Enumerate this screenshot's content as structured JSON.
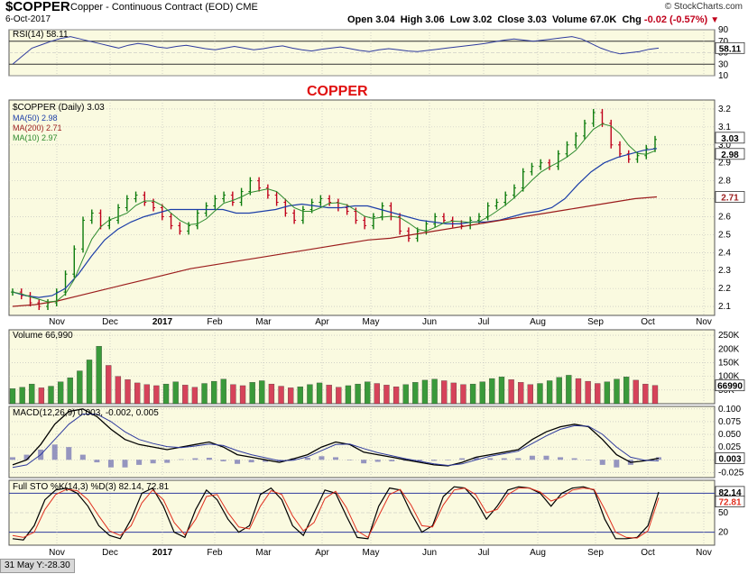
{
  "header": {
    "symbol": "$COPPER",
    "description": "Copper - Continuous Contract (EOD)",
    "exchange": "CME",
    "date": "6-Oct-2017",
    "brand": "© StockCharts.com",
    "open_label": "Open",
    "open": "3.04",
    "high_label": "High",
    "high": "3.06",
    "low_label": "Low",
    "low": "3.02",
    "close_label": "Close",
    "close": "3.03",
    "volume_label": "Volume",
    "volume": "67.0K",
    "chg_label": "Chg",
    "chg": "-0.02 (-0.57%)"
  },
  "footer": {
    "crosshair_readout": "31 May Y:-28.30"
  },
  "colors": {
    "panel_bg": "#fafae0",
    "grid": "#b9b9b9",
    "up": "#0a7a0a",
    "down": "#c0001b",
    "ma50": "#1c3ea8",
    "ma200": "#9b1c1c",
    "ma10": "#2e8b2e",
    "rsi_line": "#2e3a9e",
    "volume_up": "#3a9a3a",
    "volume_down": "#d6435a",
    "macd_line": "#000000",
    "signal_line": "#2e3a9e",
    "histogram": "#6a6ab0",
    "sto_k": "#000000",
    "sto_d": "#e03020"
  },
  "chart_data": [
    {
      "type": "line",
      "title": "RSI(14) 58.11",
      "series": [
        {
          "name": "RSI(14)",
          "values": [
            30,
            44,
            58,
            64,
            70,
            75,
            78,
            74,
            70,
            66,
            62,
            58,
            63,
            66,
            64,
            60,
            58,
            61,
            63,
            60,
            57,
            55,
            58,
            61,
            58,
            55,
            57,
            60,
            62,
            58,
            55,
            53,
            56,
            58,
            60,
            57,
            54,
            52,
            55,
            57,
            55,
            53,
            52,
            54,
            56,
            58,
            60,
            62,
            64,
            66,
            69,
            72,
            74,
            72,
            70,
            72,
            74,
            76,
            78,
            74,
            66,
            58,
            52,
            48,
            50,
            52,
            56,
            58
          ]
        }
      ],
      "ylim": [
        10,
        90
      ],
      "y_ticks": [
        "90",
        "70",
        "50",
        "30",
        "10"
      ],
      "value_badge": "58.11"
    },
    {
      "type": "line",
      "title": "$COPPER (Daily) 3.03",
      "annotation": "COPPER",
      "legend": [
        "MA(50) 2.98",
        "MA(200) 2.71",
        "MA(10) 2.97"
      ],
      "x_tick_labels": [
        "Nov",
        "Dec",
        "2017",
        "Feb",
        "Mar",
        "Apr",
        "May",
        "Jun",
        "Jul",
        "Aug",
        "Sep",
        "Oct",
        "Nov"
      ],
      "y_ticks": [
        "3.2",
        "3.1",
        "3.0",
        "2.9",
        "2.8",
        "2.7",
        "2.6",
        "2.5",
        "2.4",
        "2.3",
        "2.2",
        "2.1"
      ],
      "ylim": [
        2.05,
        3.25
      ],
      "series": [
        {
          "name": "$COPPER",
          "values": [
            2.18,
            2.16,
            2.12,
            2.1,
            2.12,
            2.18,
            2.28,
            2.42,
            2.58,
            2.62,
            2.55,
            2.58,
            2.65,
            2.7,
            2.72,
            2.68,
            2.65,
            2.6,
            2.55,
            2.52,
            2.55,
            2.62,
            2.66,
            2.7,
            2.72,
            2.68,
            2.74,
            2.8,
            2.76,
            2.72,
            2.68,
            2.62,
            2.58,
            2.64,
            2.68,
            2.7,
            2.68,
            2.65,
            2.63,
            2.58,
            2.55,
            2.6,
            2.66,
            2.6,
            2.52,
            2.48,
            2.52,
            2.56,
            2.6,
            2.58,
            2.56,
            2.55,
            2.58,
            2.6,
            2.66,
            2.68,
            2.72,
            2.76,
            2.85,
            2.88,
            2.9,
            2.88,
            2.95,
            3.0,
            3.05,
            3.12,
            3.18,
            3.12,
            3.0,
            2.95,
            2.92,
            2.94,
            2.98,
            3.03
          ]
        },
        {
          "name": "MA(50)",
          "values": [
            2.18,
            2.16,
            2.15,
            2.16,
            2.2,
            2.28,
            2.38,
            2.47,
            2.53,
            2.57,
            2.6,
            2.62,
            2.64,
            2.64,
            2.64,
            2.64,
            2.64,
            2.62,
            2.62,
            2.63,
            2.64,
            2.66,
            2.67,
            2.66,
            2.65,
            2.65,
            2.66,
            2.66,
            2.64,
            2.62,
            2.6,
            2.58,
            2.57,
            2.56,
            2.56,
            2.57,
            2.57,
            2.58,
            2.6,
            2.62,
            2.63,
            2.65,
            2.7,
            2.78,
            2.85,
            2.9,
            2.93,
            2.95,
            2.97,
            2.98
          ]
        },
        {
          "name": "MA(200)",
          "values": [
            2.1,
            2.11,
            2.13,
            2.16,
            2.19,
            2.22,
            2.25,
            2.28,
            2.31,
            2.33,
            2.35,
            2.37,
            2.39,
            2.41,
            2.43,
            2.45,
            2.47,
            2.48,
            2.5,
            2.52,
            2.54,
            2.56,
            2.58,
            2.6,
            2.62,
            2.64,
            2.66,
            2.68,
            2.7,
            2.71
          ]
        }
      ],
      "value_badges": [
        "3.03",
        "2.98",
        "2.71"
      ]
    },
    {
      "type": "bar",
      "title": "Volume 66,990",
      "y_ticks": [
        "250K",
        "200K",
        "150K",
        "100K",
        "50K"
      ],
      "ylim": [
        0,
        270000
      ],
      "value_badge": "66990",
      "values": [
        55000,
        60000,
        72000,
        58000,
        64000,
        80000,
        95000,
        120000,
        160000,
        210000,
        140000,
        100000,
        88000,
        76000,
        70000,
        66000,
        72000,
        80000,
        68000,
        60000,
        74000,
        82000,
        90000,
        70000,
        66000,
        78000,
        84000,
        72000,
        64000,
        58000,
        62000,
        70000,
        76000,
        68000,
        60000,
        66000,
        72000,
        80000,
        74000,
        68000,
        62000,
        70000,
        78000,
        86000,
        90000,
        84000,
        76000,
        70000,
        72000,
        80000,
        92000,
        98000,
        88000,
        78000,
        70000,
        74000,
        84000,
        96000,
        104000,
        92000,
        82000,
        74000,
        80000,
        90000,
        98000,
        86000,
        72000,
        67000
      ]
    },
    {
      "type": "line",
      "title": "MACD(12,26,9) 0.003, -0.002, 0.005",
      "y_ticks": [
        "0.100",
        "0.075",
        "0.050",
        "0.025",
        "0.000",
        "-0.025"
      ],
      "ylim": [
        -0.035,
        0.105
      ],
      "value_badge": "0.003",
      "series": [
        {
          "name": "MACD",
          "values": [
            -0.01,
            0.0,
            0.03,
            0.07,
            0.095,
            0.1,
            0.085,
            0.06,
            0.04,
            0.03,
            0.025,
            0.02,
            0.025,
            0.03,
            0.035,
            0.025,
            0.01,
            0.005,
            0.0,
            -0.005,
            0.002,
            0.01,
            0.025,
            0.035,
            0.03,
            0.015,
            0.01,
            0.005,
            0.0,
            -0.005,
            -0.01,
            -0.012,
            -0.005,
            0.005,
            0.01,
            0.015,
            0.02,
            0.04,
            0.055,
            0.065,
            0.07,
            0.065,
            0.04,
            0.01,
            -0.005,
            -0.002,
            0.003
          ]
        },
        {
          "name": "Signal",
          "values": [
            -0.015,
            -0.01,
            0.01,
            0.04,
            0.07,
            0.09,
            0.09,
            0.075,
            0.055,
            0.04,
            0.032,
            0.026,
            0.024,
            0.027,
            0.031,
            0.028,
            0.018,
            0.01,
            0.004,
            -0.002,
            -0.001,
            0.006,
            0.018,
            0.03,
            0.031,
            0.022,
            0.014,
            0.008,
            0.002,
            -0.003,
            -0.008,
            -0.011,
            -0.008,
            0.0,
            0.007,
            0.012,
            0.017,
            0.032,
            0.047,
            0.06,
            0.067,
            0.066,
            0.05,
            0.025,
            0.005,
            -0.001,
            -0.002
          ]
        }
      ]
    },
    {
      "type": "line",
      "title": "Full STO %K(14,3) %D(3) 82.14, 72.81",
      "y_ticks": [
        "80",
        "50",
        "20"
      ],
      "ylim": [
        0,
        100
      ],
      "value_badges": [
        "82.14",
        "72.81"
      ],
      "x_tick_labels": [
        "Nov",
        "Dec",
        "2017",
        "Feb",
        "Mar",
        "Apr",
        "May",
        "Jun",
        "Jul",
        "Aug",
        "Sep",
        "Oct",
        "Nov"
      ],
      "series": [
        {
          "name": "%K",
          "values": [
            10,
            8,
            30,
            70,
            85,
            88,
            80,
            60,
            30,
            15,
            10,
            40,
            80,
            88,
            60,
            20,
            12,
            55,
            85,
            70,
            40,
            20,
            30,
            78,
            88,
            70,
            30,
            15,
            50,
            85,
            80,
            45,
            12,
            10,
            60,
            88,
            85,
            50,
            20,
            30,
            75,
            90,
            88,
            70,
            40,
            60,
            85,
            90,
            88,
            80,
            60,
            80,
            88,
            90,
            85,
            40,
            10,
            10,
            12,
            30,
            82
          ]
        },
        {
          "name": "%D",
          "values": [
            15,
            12,
            20,
            55,
            78,
            86,
            84,
            70,
            45,
            22,
            15,
            30,
            65,
            85,
            70,
            35,
            16,
            40,
            75,
            78,
            50,
            28,
            25,
            60,
            84,
            78,
            45,
            22,
            35,
            72,
            83,
            58,
            22,
            12,
            45,
            78,
            86,
            62,
            30,
            28,
            62,
            85,
            88,
            78,
            50,
            55,
            78,
            88,
            88,
            82,
            68,
            74,
            85,
            88,
            86,
            55,
            20,
            12,
            11,
            22,
            73
          ]
        }
      ]
    }
  ]
}
